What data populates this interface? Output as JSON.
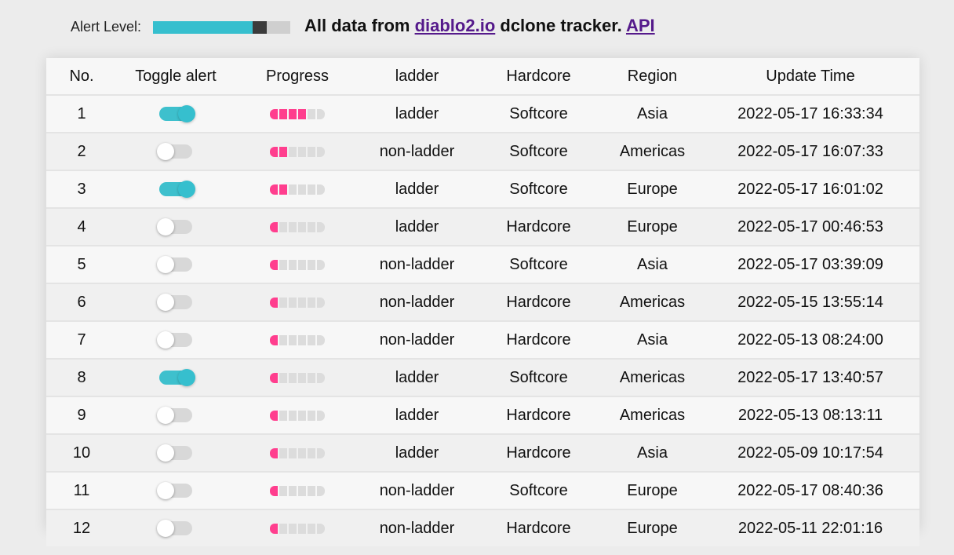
{
  "header": {
    "alert_label": "Alert Level:",
    "alert_level": 0.83,
    "headline_prefix": "All data from ",
    "site_link": "diablo2.io",
    "headline_middle": " dclone tracker. ",
    "api_link": "API"
  },
  "colors": {
    "accent": "#36bfce",
    "progress": "#ff3e8e",
    "link": "#551a8b"
  },
  "table": {
    "columns": [
      "No.",
      "Toggle alert",
      "Progress",
      "ladder",
      "Hardcore",
      "Region",
      "Update Time"
    ],
    "progress_max": 6,
    "rows": [
      {
        "no": "1",
        "alert_on": true,
        "progress": 4,
        "ladder": "ladder",
        "hardcore": "Softcore",
        "region": "Asia",
        "time": "2022-05-17 16:33:34"
      },
      {
        "no": "2",
        "alert_on": false,
        "progress": 2,
        "ladder": "non-ladder",
        "hardcore": "Softcore",
        "region": "Americas",
        "time": "2022-05-17 16:07:33"
      },
      {
        "no": "3",
        "alert_on": true,
        "progress": 2,
        "ladder": "ladder",
        "hardcore": "Softcore",
        "region": "Europe",
        "time": "2022-05-17 16:01:02"
      },
      {
        "no": "4",
        "alert_on": false,
        "progress": 1,
        "ladder": "ladder",
        "hardcore": "Hardcore",
        "region": "Europe",
        "time": "2022-05-17 00:46:53"
      },
      {
        "no": "5",
        "alert_on": false,
        "progress": 1,
        "ladder": "non-ladder",
        "hardcore": "Softcore",
        "region": "Asia",
        "time": "2022-05-17 03:39:09"
      },
      {
        "no": "6",
        "alert_on": false,
        "progress": 1,
        "ladder": "non-ladder",
        "hardcore": "Hardcore",
        "region": "Americas",
        "time": "2022-05-15 13:55:14"
      },
      {
        "no": "7",
        "alert_on": false,
        "progress": 1,
        "ladder": "non-ladder",
        "hardcore": "Hardcore",
        "region": "Asia",
        "time": "2022-05-13 08:24:00"
      },
      {
        "no": "8",
        "alert_on": true,
        "progress": 1,
        "ladder": "ladder",
        "hardcore": "Softcore",
        "region": "Americas",
        "time": "2022-05-17 13:40:57"
      },
      {
        "no": "9",
        "alert_on": false,
        "progress": 1,
        "ladder": "ladder",
        "hardcore": "Hardcore",
        "region": "Americas",
        "time": "2022-05-13 08:13:11"
      },
      {
        "no": "10",
        "alert_on": false,
        "progress": 1,
        "ladder": "ladder",
        "hardcore": "Hardcore",
        "region": "Asia",
        "time": "2022-05-09 10:17:54"
      },
      {
        "no": "11",
        "alert_on": false,
        "progress": 1,
        "ladder": "non-ladder",
        "hardcore": "Softcore",
        "region": "Europe",
        "time": "2022-05-17 08:40:36"
      },
      {
        "no": "12",
        "alert_on": false,
        "progress": 1,
        "ladder": "non-ladder",
        "hardcore": "Hardcore",
        "region": "Europe",
        "time": "2022-05-11 22:01:16"
      }
    ]
  }
}
